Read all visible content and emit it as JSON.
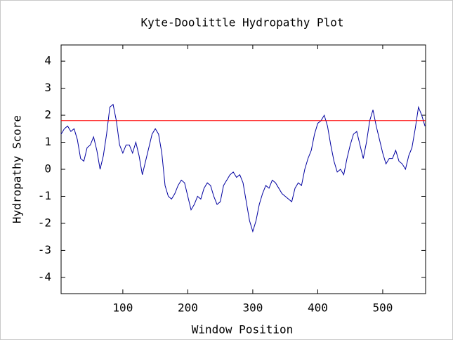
{
  "chart_data": {
    "type": "line",
    "title": "Kyte-Doolittle Hydropathy Plot",
    "x_label": "Window Position",
    "y_label": "Hydropathy Score",
    "x": [
      5,
      10,
      15,
      20,
      25,
      30,
      35,
      40,
      45,
      50,
      55,
      60,
      65,
      70,
      75,
      80,
      85,
      90,
      95,
      100,
      105,
      110,
      115,
      120,
      125,
      130,
      135,
      140,
      145,
      150,
      155,
      160,
      165,
      170,
      175,
      180,
      185,
      190,
      195,
      200,
      205,
      210,
      215,
      220,
      225,
      230,
      235,
      240,
      245,
      250,
      255,
      260,
      265,
      270,
      275,
      280,
      285,
      290,
      295,
      300,
      305,
      310,
      315,
      320,
      325,
      330,
      335,
      340,
      345,
      350,
      355,
      360,
      365,
      370,
      375,
      380,
      385,
      390,
      395,
      400,
      405,
      410,
      415,
      420,
      425,
      430,
      435,
      440,
      445,
      450,
      455,
      460,
      465,
      470,
      475,
      480,
      485,
      490,
      495,
      500,
      505,
      510,
      515,
      520,
      525,
      530,
      535,
      540,
      545,
      550,
      555,
      560,
      565
    ],
    "series": [
      {
        "name": "Hydropathy",
        "color": "#0000a0",
        "values": [
          1.3,
          1.5,
          1.6,
          1.4,
          1.5,
          1.1,
          0.4,
          0.3,
          0.8,
          0.9,
          1.2,
          0.7,
          0.0,
          0.5,
          1.3,
          2.3,
          2.4,
          1.8,
          0.9,
          0.6,
          0.9,
          0.9,
          0.6,
          1.0,
          0.5,
          -0.2,
          0.3,
          0.8,
          1.3,
          1.5,
          1.3,
          0.6,
          -0.6,
          -1.0,
          -1.1,
          -0.9,
          -0.6,
          -0.4,
          -0.5,
          -1.0,
          -1.5,
          -1.3,
          -1.0,
          -1.1,
          -0.7,
          -0.5,
          -0.6,
          -1.0,
          -1.3,
          -1.2,
          -0.6,
          -0.4,
          -0.2,
          -0.1,
          -0.3,
          -0.2,
          -0.5,
          -1.2,
          -1.9,
          -2.3,
          -1.9,
          -1.3,
          -0.9,
          -0.6,
          -0.7,
          -0.4,
          -0.5,
          -0.7,
          -0.9,
          -1.0,
          -1.1,
          -1.2,
          -0.7,
          -0.5,
          -0.6,
          0.0,
          0.4,
          0.7,
          1.3,
          1.7,
          1.8,
          2.0,
          1.6,
          0.9,
          0.3,
          -0.1,
          0.0,
          -0.2,
          0.4,
          0.9,
          1.3,
          1.4,
          0.9,
          0.4,
          1.0,
          1.8,
          2.2,
          1.6,
          1.1,
          0.6,
          0.2,
          0.4,
          0.4,
          0.7,
          0.3,
          0.2,
          0.0,
          0.5,
          0.8,
          1.5,
          2.3,
          2.0,
          1.6
        ]
      }
    ],
    "threshold": 1.8,
    "threshold_color": "#ff0000",
    "xlim": [
      5,
      566
    ],
    "ylim": [
      -4.6,
      4.6
    ],
    "xticks": [
      100,
      200,
      300,
      400,
      500
    ],
    "yticks": [
      -4,
      -3,
      -2,
      -1,
      0,
      1,
      2,
      3,
      4
    ]
  }
}
